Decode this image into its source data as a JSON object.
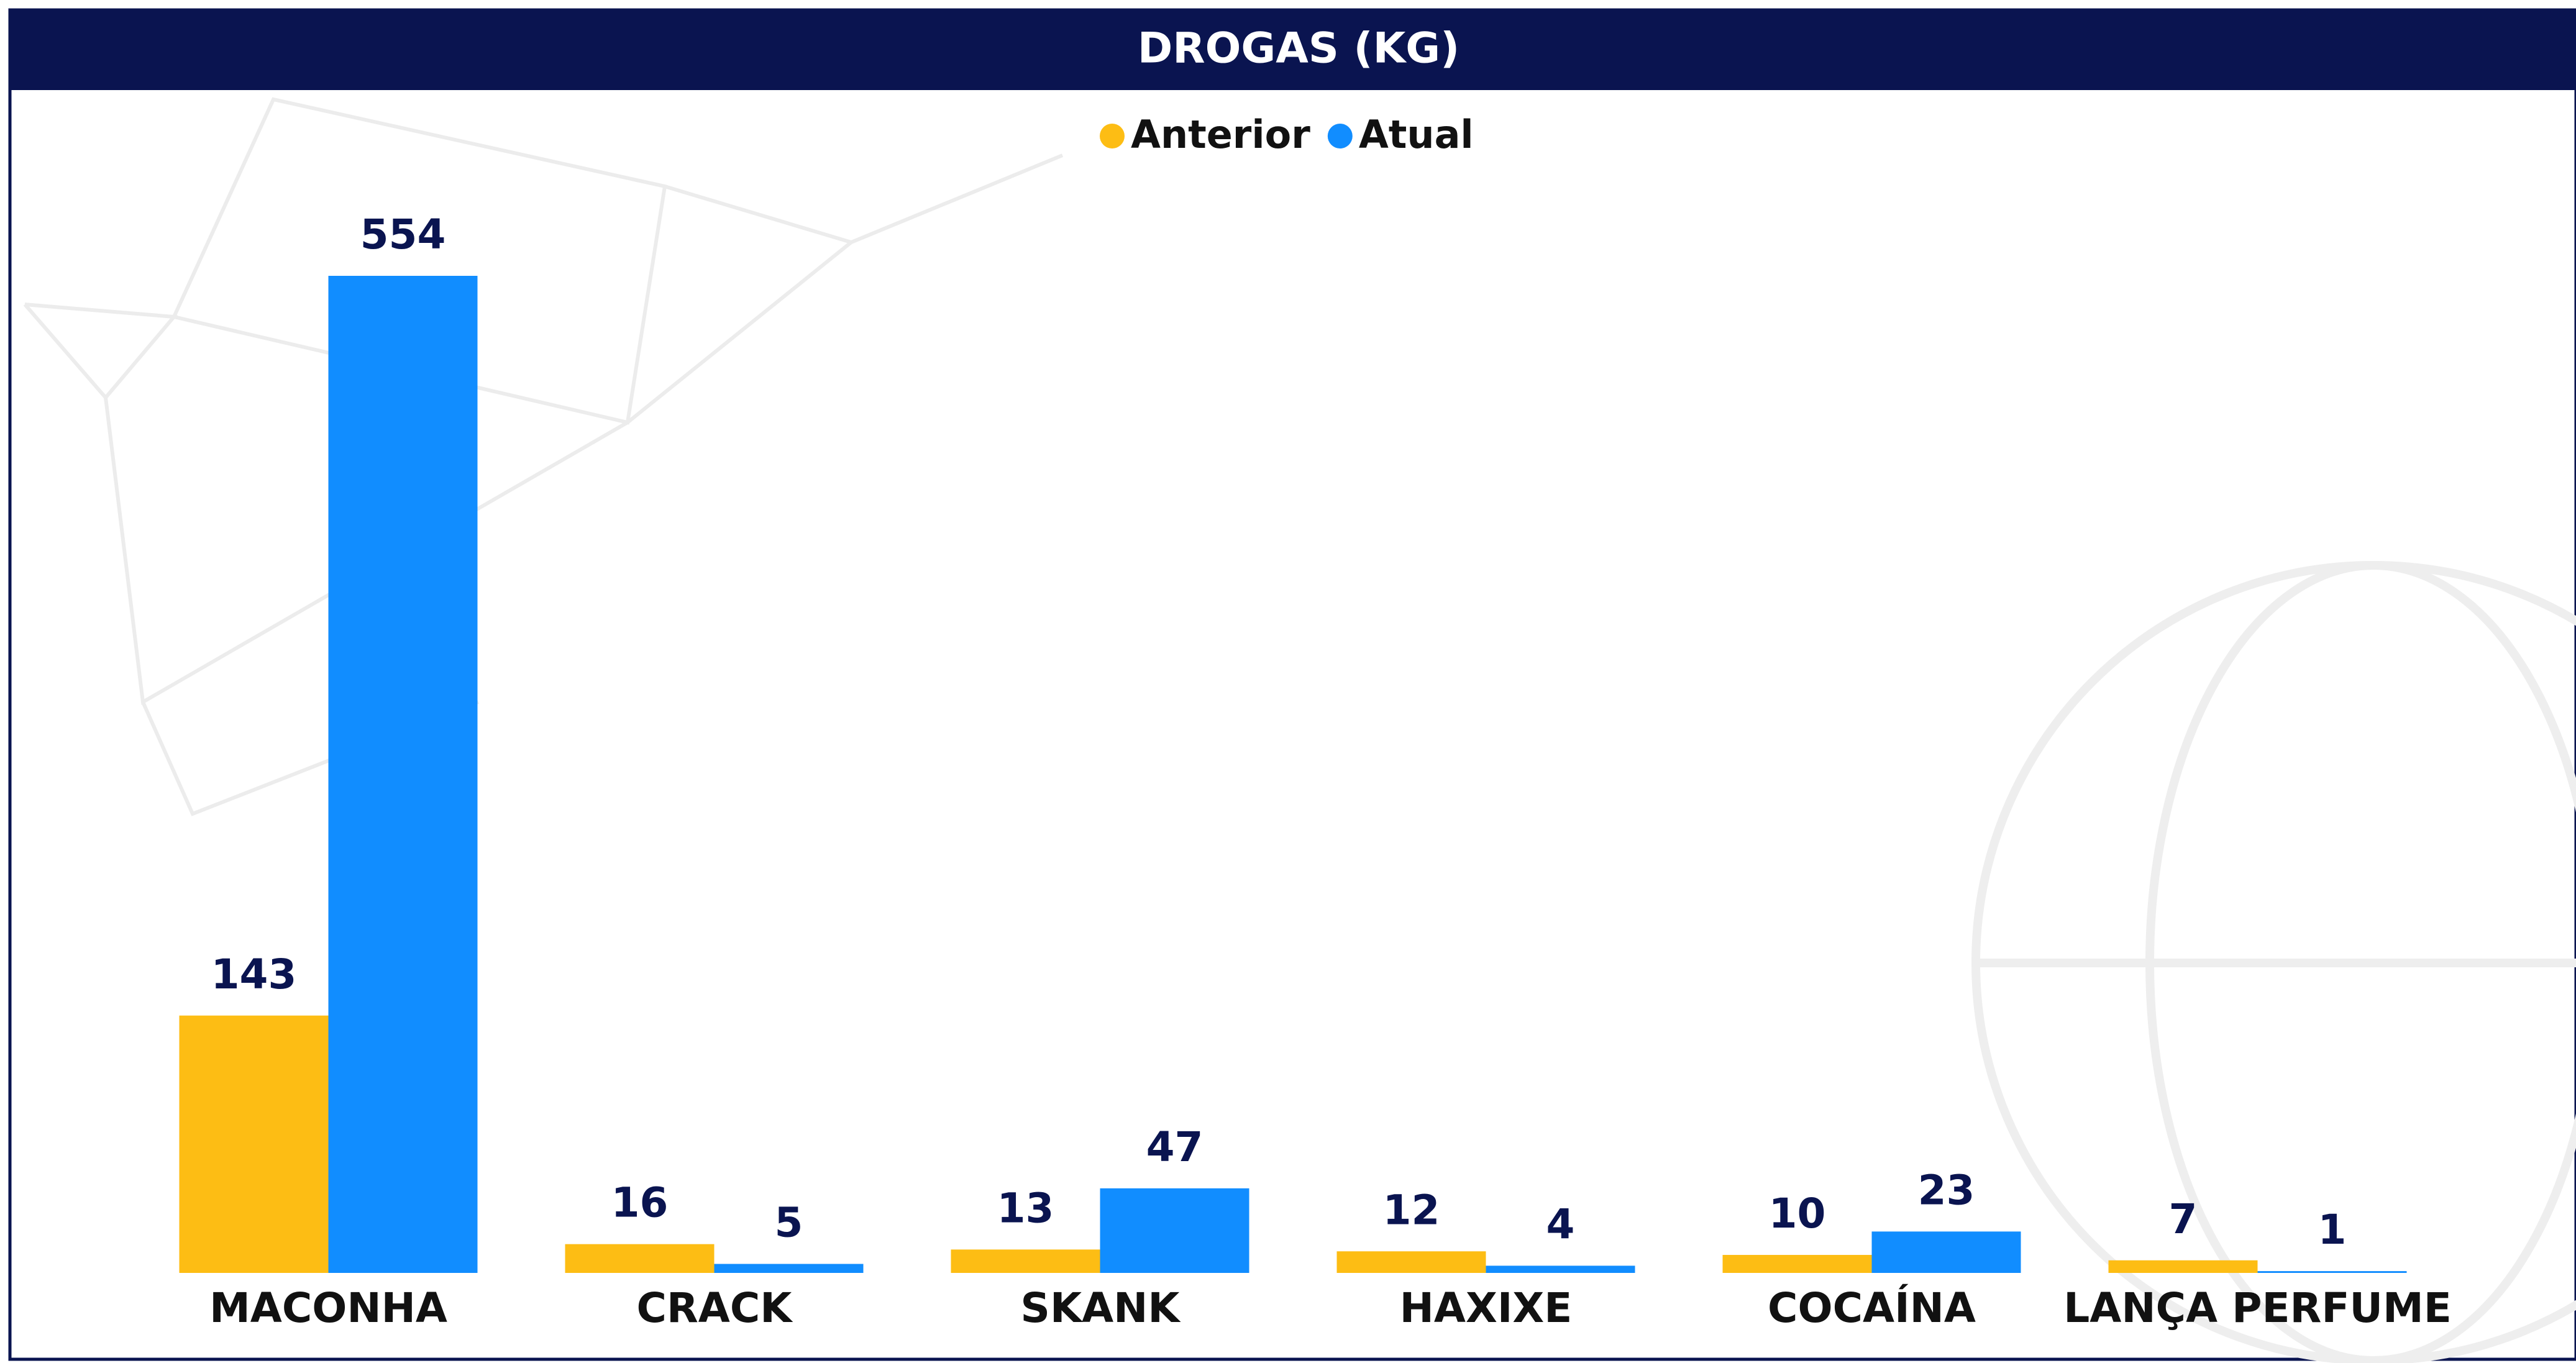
{
  "chart_data": {
    "type": "bar",
    "title": "DROGAS (KG)",
    "categories": [
      "MACONHA",
      "CRACK",
      "SKANK",
      "HAXIXE",
      "COCAÍNA",
      "LANÇA PERFUME"
    ],
    "series": [
      {
        "name": "Anterior",
        "color": "#fdbd14",
        "values": [
          143,
          16,
          13,
          12,
          10,
          7
        ]
      },
      {
        "name": "Atual",
        "color": "#118dff",
        "values": [
          554,
          5,
          47,
          4,
          23,
          1
        ]
      }
    ],
    "legend": "top"
  }
}
